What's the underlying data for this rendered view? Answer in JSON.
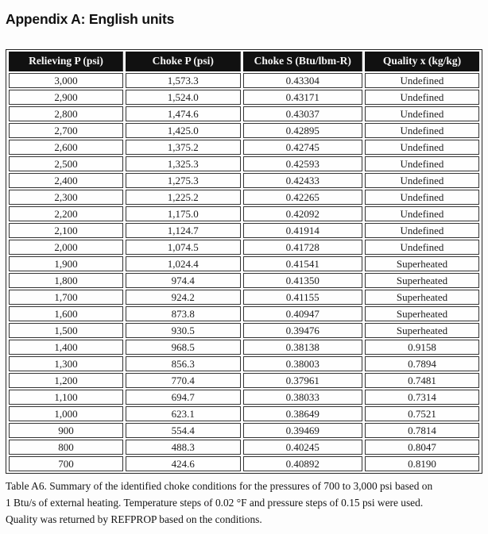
{
  "page": {
    "title": "Appendix A: English units"
  },
  "table": {
    "columns": [
      "Relieving P (psi)",
      "Choke P (psi)",
      "Choke S (Btu/lbm-R)",
      "Quality x (kg/kg)"
    ],
    "rows": [
      [
        "3,000",
        "1,573.3",
        "0.43304",
        "Undefined"
      ],
      [
        "2,900",
        "1,524.0",
        "0.43171",
        "Undefined"
      ],
      [
        "2,800",
        "1,474.6",
        "0.43037",
        "Undefined"
      ],
      [
        "2,700",
        "1,425.0",
        "0.42895",
        "Undefined"
      ],
      [
        "2,600",
        "1,375.2",
        "0.42745",
        "Undefined"
      ],
      [
        "2,500",
        "1,325.3",
        "0.42593",
        "Undefined"
      ],
      [
        "2,400",
        "1,275.3",
        "0.42433",
        "Undefined"
      ],
      [
        "2,300",
        "1,225.2",
        "0.42265",
        "Undefined"
      ],
      [
        "2,200",
        "1,175.0",
        "0.42092",
        "Undefined"
      ],
      [
        "2,100",
        "1,124.7",
        "0.41914",
        "Undefined"
      ],
      [
        "2,000",
        "1,074.5",
        "0.41728",
        "Undefined"
      ],
      [
        "1,900",
        "1,024.4",
        "0.41541",
        "Superheated"
      ],
      [
        "1,800",
        "974.4",
        "0.41350",
        "Superheated"
      ],
      [
        "1,700",
        "924.2",
        "0.41155",
        "Superheated"
      ],
      [
        "1,600",
        "873.8",
        "0.40947",
        "Superheated"
      ],
      [
        "1,500",
        "930.5",
        "0.39476",
        "Superheated"
      ],
      [
        "1,400",
        "968.5",
        "0.38138",
        "0.9158"
      ],
      [
        "1,300",
        "856.3",
        "0.38003",
        "0.7894"
      ],
      [
        "1,200",
        "770.4",
        "0.37961",
        "0.7481"
      ],
      [
        "1,100",
        "694.7",
        "0.38033",
        "0.7314"
      ],
      [
        "1,000",
        "623.1",
        "0.38649",
        "0.7521"
      ],
      [
        "900",
        "554.4",
        "0.39469",
        "0.7814"
      ],
      [
        "800",
        "488.3",
        "0.40245",
        "0.8047"
      ],
      [
        "700",
        "424.6",
        "0.40892",
        "0.8190"
      ]
    ]
  },
  "caption": {
    "label": "Table A6.",
    "lines": [
      "Table A6. Summary of the identified choke conditions for the pressures of 700 to 3,000 psi based on",
      "1 Btu/s of external heating. Temperature steps of 0.02 °F and pressure steps of 0.15 psi were used.",
      "Quality was returned by REFPROP based on the conditions."
    ]
  },
  "colors": {
    "header_bg": "#111111",
    "header_text": "#f7f7f7",
    "body_text": "#1c1c1c",
    "border": "#343434",
    "page_bg": "#fdfdfd"
  }
}
